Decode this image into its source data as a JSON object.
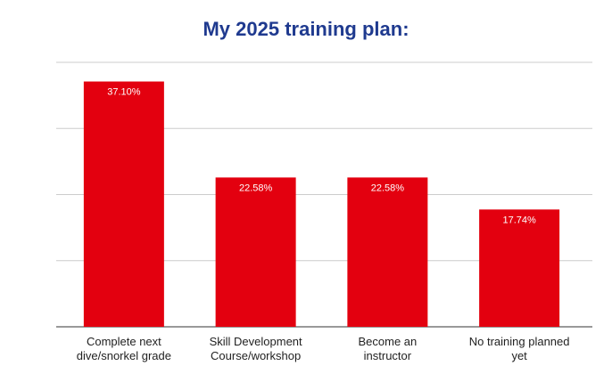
{
  "chart_data": {
    "type": "bar",
    "title": "My 2025 training plan:",
    "categories": [
      [
        "Complete next",
        "dive/snorkel grade"
      ],
      [
        "Skill Development",
        "Course/workshop"
      ],
      [
        "Become an",
        "instructor"
      ],
      [
        "No training planned",
        "yet"
      ]
    ],
    "values": [
      37.1,
      22.58,
      22.58,
      17.74
    ],
    "data_labels": [
      "37.10%",
      "22.58%",
      "22.58%",
      "17.74%"
    ],
    "ylim": [
      0,
      40
    ],
    "grid": true,
    "bar_color": "#e3000f",
    "title_color": "#1f3a8f"
  }
}
